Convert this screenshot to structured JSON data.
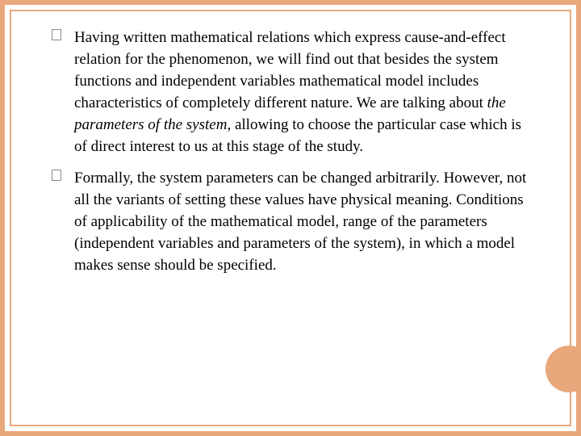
{
  "colors": {
    "frame": "#e8a87c",
    "background": "#ffffff",
    "text": "#000000",
    "bullet_border": "#8a8a8a"
  },
  "typography": {
    "font_family": "Georgia, Times New Roman, serif",
    "body_fontsize": 19,
    "line_height": 1.42
  },
  "bullets": [
    {
      "pre": "Having written mathematical relations which express cause-and-effect relation for the phenomenon, we will find out that besides the system functions and independent variables mathematical model includes characteristics of completely different nature. We are talking about ",
      "italic": "the parameters of the system",
      "post": ", allowing to choose the particular case which is of direct interest to us at this stage of the study."
    },
    {
      "pre": "Formally, the system parameters can be changed arbitrarily. However, not all the variants of setting these values have physical meaning. Conditions of applicability of the mathematical model,  range of the parameters (independent variables and parameters of the system), in which a model makes sense should be specified.",
      "italic": "",
      "post": ""
    }
  ]
}
